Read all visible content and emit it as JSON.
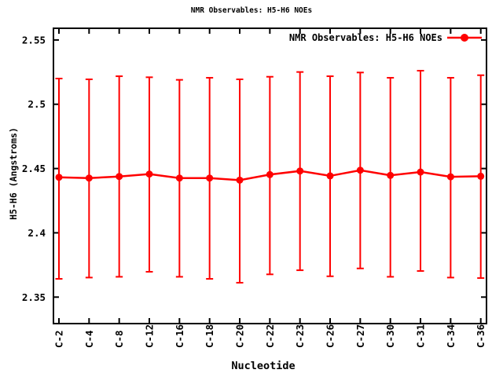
{
  "title": "NMR Observables: H5-H6 NOEs",
  "chart_data": {
    "type": "line",
    "title": "NMR Observables: H5-H6 NOEs",
    "xlabel": "Nucleotide",
    "ylabel": "H5-H6 (Angstroms)",
    "legend": {
      "label": "NMR Observables: H5-H6 NOEs",
      "position": "top-right-inside",
      "marker": "filled-circle-with-line"
    },
    "grid": false,
    "categories": [
      "C-2",
      "C-4",
      "C-8",
      "C-12",
      "C-16",
      "C-18",
      "C-20",
      "C-22",
      "C-23",
      "C-26",
      "C-27",
      "C-30",
      "C-31",
      "C-34",
      "C-36"
    ],
    "series": [
      {
        "name": "NMR Observables: H5-H6 NOEs",
        "values": [
          2.4432,
          2.4426,
          2.4438,
          2.4457,
          2.4426,
          2.4426,
          2.441,
          2.4453,
          2.4481,
          2.4443,
          2.4487,
          2.4447,
          2.4473,
          2.4436,
          2.444
        ],
        "err_high": [
          2.52,
          2.5194,
          2.5218,
          2.521,
          2.519,
          2.5206,
          2.5194,
          2.5214,
          2.5251,
          2.5218,
          2.5247,
          2.5206,
          2.5261,
          2.5206,
          2.5226
        ],
        "err_low": [
          2.3642,
          2.3652,
          2.3658,
          2.3697,
          2.3658,
          2.3642,
          2.3612,
          2.3677,
          2.3709,
          2.3662,
          2.3723,
          2.3658,
          2.3703,
          2.3652,
          2.3648
        ]
      }
    ],
    "yticks": [
      "2.35",
      "2.4",
      "2.45",
      "2.5",
      "2.55"
    ],
    "ytick_values": [
      2.35,
      2.4,
      2.45,
      2.5,
      2.55
    ],
    "ylim": [
      2.3294,
      2.5591
    ],
    "colors": {
      "series": "#ff0000",
      "axis": "#000000",
      "background": "#ffffff"
    }
  }
}
